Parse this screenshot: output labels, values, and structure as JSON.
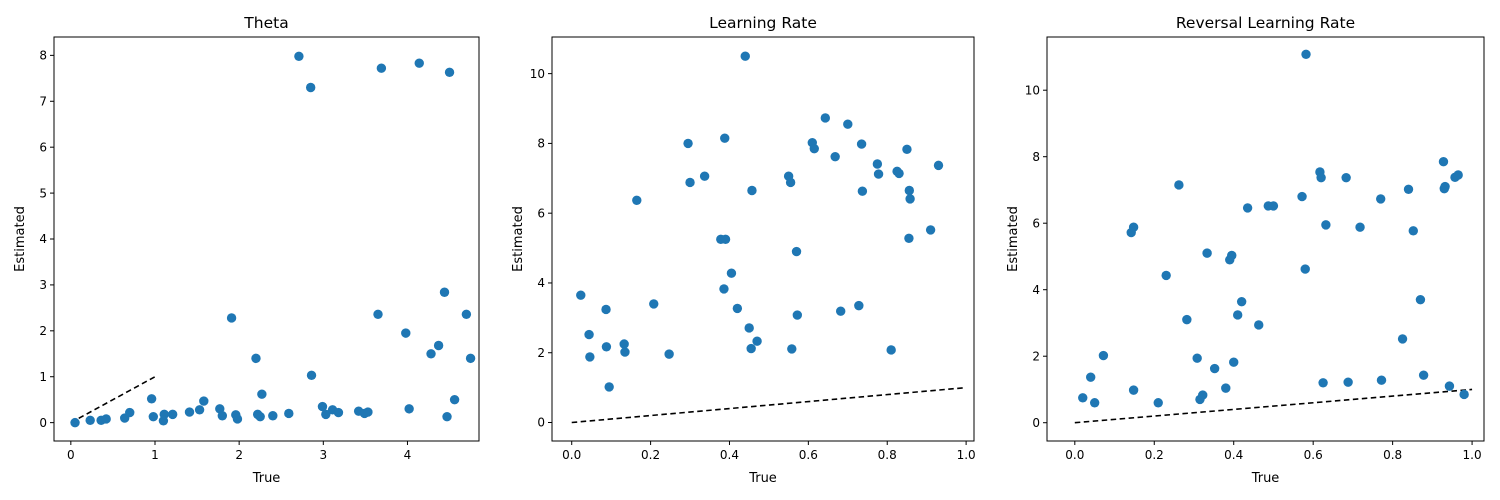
{
  "colors": {
    "marker": "#1f77b4",
    "reference_line": "#000000"
  },
  "chart_data": [
    {
      "type": "scatter",
      "title": "Theta",
      "xlabel": "True",
      "ylabel": "Estimated",
      "xlim": [
        -0.2,
        4.85
      ],
      "ylim": [
        -0.4,
        8.4
      ],
      "xticks": [
        0,
        1,
        2,
        3,
        4
      ],
      "yticks": [
        0,
        1,
        2,
        3,
        4,
        5,
        6,
        7,
        8
      ],
      "xtick_labels": [
        "0",
        "1",
        "2",
        "3",
        "4"
      ],
      "ytick_labels": [
        "0",
        "1",
        "2",
        "3",
        "4",
        "5",
        "6",
        "7",
        "8"
      ],
      "reference_line": {
        "x": [
          0,
          1
        ],
        "y": [
          0,
          1
        ],
        "style": "dashed"
      },
      "points": [
        [
          0.05,
          0.0
        ],
        [
          0.23,
          0.05
        ],
        [
          0.36,
          0.05
        ],
        [
          0.42,
          0.08
        ],
        [
          0.64,
          0.1
        ],
        [
          0.7,
          0.22
        ],
        [
          0.96,
          0.52
        ],
        [
          0.98,
          0.13
        ],
        [
          1.1,
          0.04
        ],
        [
          1.11,
          0.18
        ],
        [
          1.21,
          0.18
        ],
        [
          1.41,
          0.23
        ],
        [
          1.53,
          0.28
        ],
        [
          1.58,
          0.47
        ],
        [
          1.77,
          0.3
        ],
        [
          1.8,
          0.15
        ],
        [
          1.91,
          2.28
        ],
        [
          1.96,
          0.17
        ],
        [
          1.98,
          0.08
        ],
        [
          2.2,
          1.4
        ],
        [
          2.22,
          0.18
        ],
        [
          2.25,
          0.13
        ],
        [
          2.27,
          0.62
        ],
        [
          2.4,
          0.15
        ],
        [
          2.59,
          0.2
        ],
        [
          2.71,
          7.98
        ],
        [
          2.85,
          7.3
        ],
        [
          2.86,
          1.03
        ],
        [
          2.99,
          0.35
        ],
        [
          3.03,
          0.18
        ],
        [
          3.11,
          0.28
        ],
        [
          3.18,
          0.22
        ],
        [
          3.42,
          0.25
        ],
        [
          3.49,
          0.2
        ],
        [
          3.53,
          0.23
        ],
        [
          3.65,
          2.36
        ],
        [
          3.69,
          7.72
        ],
        [
          3.98,
          1.95
        ],
        [
          4.02,
          0.3
        ],
        [
          4.14,
          7.83
        ],
        [
          4.28,
          1.5
        ],
        [
          4.37,
          1.68
        ],
        [
          4.44,
          2.84
        ],
        [
          4.47,
          0.13
        ],
        [
          4.5,
          7.63
        ],
        [
          4.56,
          0.5
        ],
        [
          4.7,
          2.36
        ],
        [
          4.75,
          1.4
        ]
      ]
    },
    {
      "type": "scatter",
      "title": "Learning Rate",
      "xlabel": "True",
      "ylabel": "Estimated",
      "xlim": [
        -0.05,
        1.02
      ],
      "ylim": [
        -0.53,
        11.05
      ],
      "xticks": [
        0.0,
        0.2,
        0.4,
        0.6,
        0.8,
        1.0
      ],
      "yticks": [
        0,
        2,
        4,
        6,
        8,
        10
      ],
      "xtick_labels": [
        "0.0",
        "0.2",
        "0.4",
        "0.6",
        "0.8",
        "1.0"
      ],
      "ytick_labels": [
        "0",
        "2",
        "4",
        "6",
        "8",
        "10"
      ],
      "reference_line": {
        "x": [
          0,
          1
        ],
        "y": [
          0,
          1
        ],
        "style": "dashed"
      },
      "points": [
        [
          0.023,
          3.65
        ],
        [
          0.044,
          2.52
        ],
        [
          0.046,
          1.88
        ],
        [
          0.087,
          3.24
        ],
        [
          0.088,
          2.17
        ],
        [
          0.095,
          1.02
        ],
        [
          0.133,
          2.25
        ],
        [
          0.135,
          2.02
        ],
        [
          0.165,
          6.37
        ],
        [
          0.208,
          3.4
        ],
        [
          0.247,
          1.96
        ],
        [
          0.295,
          8.0
        ],
        [
          0.3,
          6.88
        ],
        [
          0.337,
          7.06
        ],
        [
          0.378,
          5.25
        ],
        [
          0.386,
          3.83
        ],
        [
          0.388,
          8.15
        ],
        [
          0.39,
          5.25
        ],
        [
          0.405,
          4.28
        ],
        [
          0.42,
          3.27
        ],
        [
          0.44,
          10.5
        ],
        [
          0.45,
          2.71
        ],
        [
          0.455,
          2.12
        ],
        [
          0.457,
          6.65
        ],
        [
          0.47,
          2.33
        ],
        [
          0.55,
          7.06
        ],
        [
          0.555,
          6.88
        ],
        [
          0.558,
          2.11
        ],
        [
          0.57,
          4.9
        ],
        [
          0.572,
          3.08
        ],
        [
          0.61,
          8.02
        ],
        [
          0.615,
          7.85
        ],
        [
          0.643,
          8.73
        ],
        [
          0.668,
          7.62
        ],
        [
          0.682,
          3.19
        ],
        [
          0.7,
          8.55
        ],
        [
          0.728,
          3.35
        ],
        [
          0.735,
          7.98
        ],
        [
          0.737,
          6.63
        ],
        [
          0.775,
          7.41
        ],
        [
          0.778,
          7.12
        ],
        [
          0.81,
          2.08
        ],
        [
          0.825,
          7.2
        ],
        [
          0.83,
          7.14
        ],
        [
          0.85,
          7.83
        ],
        [
          0.855,
          5.28
        ],
        [
          0.856,
          6.65
        ],
        [
          0.858,
          6.41
        ],
        [
          0.91,
          5.52
        ],
        [
          0.93,
          7.37
        ]
      ]
    },
    {
      "type": "scatter",
      "title": "Reversal Learning Rate",
      "xlabel": "True",
      "ylabel": "Estimated",
      "xlim": [
        -0.07,
        1.03
      ],
      "ylim": [
        -0.55,
        11.6
      ],
      "xticks": [
        0.0,
        0.2,
        0.4,
        0.6,
        0.8,
        1.0
      ],
      "yticks": [
        0,
        2,
        4,
        6,
        8,
        10
      ],
      "xtick_labels": [
        "0.0",
        "0.2",
        "0.4",
        "0.6",
        "0.8",
        "1.0"
      ],
      "ytick_labels": [
        "0",
        "2",
        "4",
        "6",
        "8",
        "10"
      ],
      "reference_line": {
        "x": [
          0,
          1
        ],
        "y": [
          0,
          1
        ],
        "style": "dashed"
      },
      "points": [
        [
          0.02,
          0.75
        ],
        [
          0.04,
          1.37
        ],
        [
          0.05,
          0.6
        ],
        [
          0.072,
          2.02
        ],
        [
          0.142,
          5.72
        ],
        [
          0.148,
          5.88
        ],
        [
          0.148,
          0.98
        ],
        [
          0.21,
          0.6
        ],
        [
          0.23,
          4.43
        ],
        [
          0.262,
          7.15
        ],
        [
          0.282,
          3.1
        ],
        [
          0.308,
          1.94
        ],
        [
          0.315,
          0.7
        ],
        [
          0.322,
          0.83
        ],
        [
          0.333,
          5.1
        ],
        [
          0.352,
          1.63
        ],
        [
          0.38,
          1.04
        ],
        [
          0.39,
          4.9
        ],
        [
          0.395,
          5.03
        ],
        [
          0.4,
          1.82
        ],
        [
          0.41,
          3.24
        ],
        [
          0.42,
          3.64
        ],
        [
          0.435,
          6.46
        ],
        [
          0.463,
          2.94
        ],
        [
          0.487,
          6.52
        ],
        [
          0.5,
          6.52
        ],
        [
          0.572,
          6.8
        ],
        [
          0.58,
          4.62
        ],
        [
          0.582,
          11.08
        ],
        [
          0.617,
          7.54
        ],
        [
          0.62,
          7.37
        ],
        [
          0.625,
          1.2
        ],
        [
          0.632,
          5.95
        ],
        [
          0.683,
          7.37
        ],
        [
          0.688,
          1.22
        ],
        [
          0.718,
          5.88
        ],
        [
          0.77,
          6.73
        ],
        [
          0.772,
          1.28
        ],
        [
          0.825,
          2.52
        ],
        [
          0.84,
          7.02
        ],
        [
          0.852,
          5.77
        ],
        [
          0.87,
          3.7
        ],
        [
          0.878,
          1.43
        ],
        [
          0.928,
          7.85
        ],
        [
          0.93,
          7.04
        ],
        [
          0.932,
          7.1
        ],
        [
          0.943,
          1.1
        ],
        [
          0.957,
          7.38
        ],
        [
          0.965,
          7.45
        ],
        [
          0.98,
          0.85
        ]
      ]
    }
  ]
}
